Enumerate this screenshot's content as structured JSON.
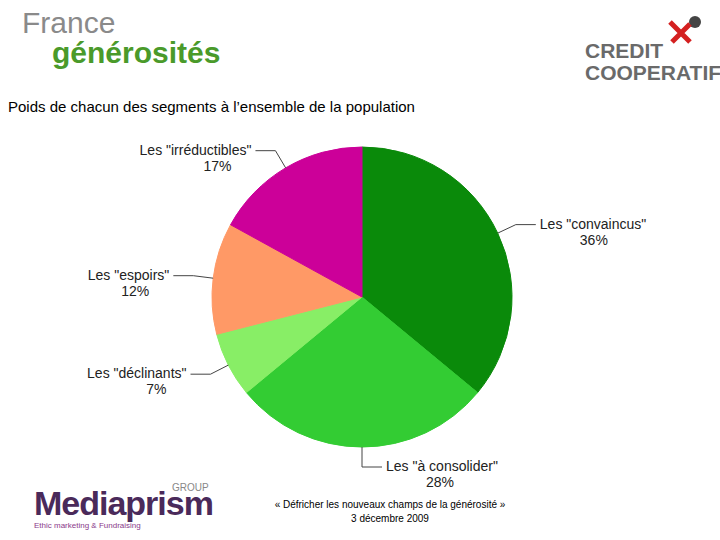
{
  "header": {
    "left_logo": [
      "France",
      "générosités"
    ],
    "right_logo": [
      "CREDIT",
      "COOPERATIF"
    ]
  },
  "chart_data": {
    "type": "pie",
    "title": "Poids de chacun des segments à l’ensemble de la population",
    "categories": [
      "Les \"convaincus\"",
      "Les \"à consolider\"",
      "Les \"déclinants\"",
      "Les \"espoirs\"",
      "Les \"irréductibles\""
    ],
    "values": [
      36,
      28,
      7,
      12,
      17
    ],
    "value_labels": [
      "36%",
      "28%",
      "7%",
      "12%",
      "17%"
    ],
    "colors": [
      "#0a8a0a",
      "#33cc33",
      "#88ee66",
      "#ff9966",
      "#cc0099"
    ]
  },
  "footer": {
    "logo": "Mediaprism",
    "logo_group": "GROUP",
    "logo_tagline": "Ethic marketing & Fundraising",
    "caption": "« Défricher les nouveaux champs de la générosité »",
    "date": "3 décembre 2009"
  }
}
